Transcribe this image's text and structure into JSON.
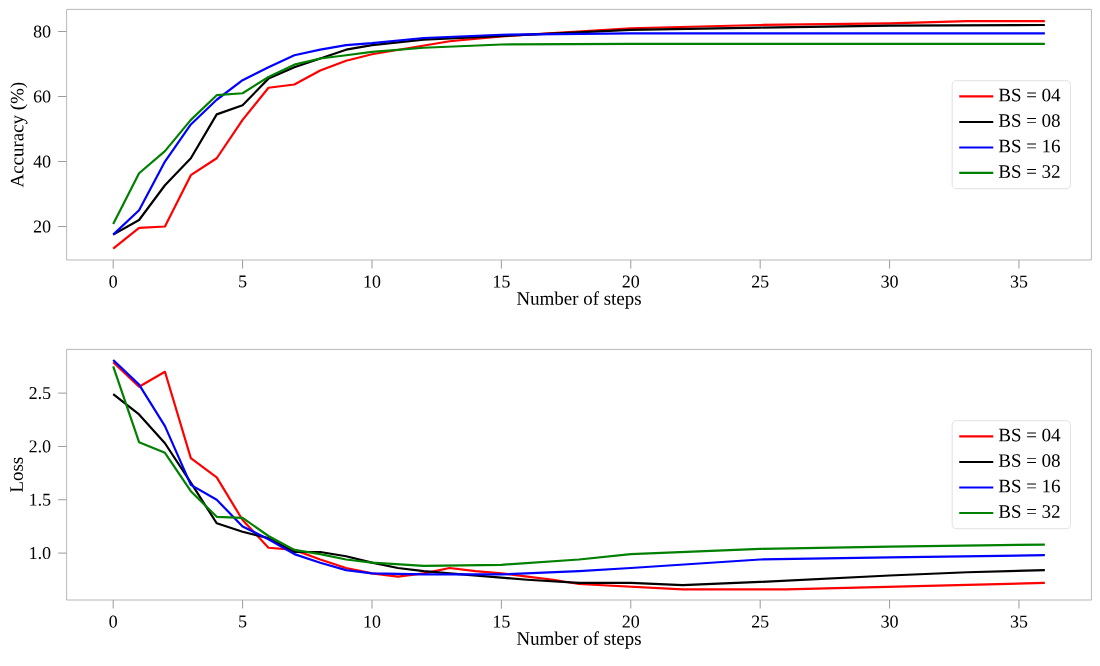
{
  "chart_data": [
    {
      "type": "line",
      "xlabel": "Number of steps",
      "ylabel": "Accuracy (%)",
      "xlim": [
        -1.8,
        37.8
      ],
      "ylim": [
        9.7,
        86.8
      ],
      "xticks": [
        0,
        5,
        10,
        15,
        20,
        25,
        30,
        35
      ],
      "yticks": [
        20,
        40,
        60,
        80
      ],
      "legend": "right",
      "grid": false,
      "marker": "none",
      "line_style": "solid",
      "series": [
        {
          "name": "BS = 04",
          "color": "#ff0000",
          "x": [
            0,
            1,
            2,
            3,
            4,
            5,
            6,
            7,
            8,
            9,
            10,
            13,
            15,
            20,
            25,
            30,
            33,
            36
          ],
          "values": [
            13.2,
            19.6,
            20,
            35.8,
            41,
            52.8,
            62.7,
            63.7,
            68,
            71,
            73,
            77,
            78.5,
            81,
            82,
            82.5,
            83.2,
            83.2
          ]
        },
        {
          "name": "BS = 08",
          "color": "#000000",
          "x": [
            0,
            1,
            2,
            3,
            4,
            5,
            6,
            7,
            8,
            9,
            10,
            12,
            20,
            25,
            30,
            36
          ],
          "values": [
            17.5,
            22,
            32.7,
            41,
            54.5,
            57.3,
            65.5,
            69,
            71.7,
            74.4,
            75.8,
            77.5,
            80.5,
            81.2,
            81.8,
            82
          ]
        },
        {
          "name": "BS = 16",
          "color": "#0000ff",
          "x": [
            0,
            1,
            2,
            3,
            4,
            5,
            6,
            7,
            8,
            9,
            10,
            12,
            15,
            20,
            36
          ],
          "values": [
            17.5,
            25,
            40,
            51.4,
            59,
            65,
            69,
            72.7,
            74.4,
            75.8,
            76.4,
            78,
            79,
            79.4,
            79.4
          ]
        },
        {
          "name": "BS = 32",
          "color": "#008000",
          "x": [
            0,
            1,
            2,
            3,
            4,
            5,
            6,
            7,
            8,
            9,
            10,
            12,
            15,
            20,
            36
          ],
          "values": [
            20.8,
            36.4,
            43.2,
            52.8,
            60.4,
            61,
            66,
            69.8,
            71.7,
            72.7,
            73.7,
            75,
            76,
            76.2,
            76.2
          ]
        }
      ]
    },
    {
      "type": "line",
      "xlabel": "Number of steps",
      "ylabel": "Loss",
      "xlim": [
        -1.8,
        37.8
      ],
      "ylim": [
        0.56,
        2.91
      ],
      "xticks": [
        0,
        5,
        10,
        15,
        20,
        25,
        30,
        35
      ],
      "yticks": [
        {
          "value": 1,
          "label": "1.0"
        },
        1.5,
        {
          "value": 2,
          "label": "2.0"
        },
        2.5
      ],
      "legend": "right",
      "grid": false,
      "marker": "none",
      "line_style": "solid",
      "series": [
        {
          "name": "BS = 04",
          "color": "#ff0000",
          "x": [
            0,
            1,
            2,
            3,
            4,
            5,
            6,
            7,
            8,
            9,
            10,
            11,
            12,
            13,
            14,
            15,
            16,
            17,
            18,
            22,
            26,
            36
          ],
          "values": [
            2.79,
            2.56,
            2.7,
            1.89,
            1.71,
            1.31,
            1.05,
            1.03,
            0.94,
            0.86,
            0.81,
            0.78,
            0.81,
            0.86,
            0.83,
            0.81,
            0.78,
            0.75,
            0.71,
            0.66,
            0.66,
            0.72
          ]
        },
        {
          "name": "BS = 08",
          "color": "#000000",
          "x": [
            0,
            1,
            2,
            3,
            4,
            5,
            6,
            7,
            8,
            9,
            10,
            11,
            12,
            13,
            15,
            16,
            18,
            20,
            22,
            25,
            30,
            33,
            36
          ],
          "values": [
            2.49,
            2.3,
            2.03,
            1.66,
            1.28,
            1.2,
            1.14,
            1.01,
            1.01,
            0.97,
            0.91,
            0.86,
            0.83,
            0.81,
            0.77,
            0.75,
            0.72,
            0.72,
            0.7,
            0.73,
            0.79,
            0.82,
            0.84
          ]
        },
        {
          "name": "BS = 16",
          "color": "#0000ff",
          "x": [
            0,
            1,
            2,
            3,
            4,
            5,
            6,
            7,
            8,
            9,
            10,
            12,
            15,
            18,
            20,
            25,
            30,
            36
          ],
          "values": [
            2.81,
            2.58,
            2.19,
            1.64,
            1.5,
            1.25,
            1.13,
            0.99,
            0.91,
            0.84,
            0.81,
            0.8,
            0.8,
            0.83,
            0.86,
            0.94,
            0.96,
            0.98
          ]
        },
        {
          "name": "BS = 32",
          "color": "#008000",
          "x": [
            0,
            1,
            2,
            3,
            4,
            5,
            6,
            7,
            8,
            9,
            10,
            12,
            15,
            18,
            20,
            25,
            30,
            36
          ],
          "values": [
            2.75,
            2.04,
            1.94,
            1.58,
            1.34,
            1.33,
            1.16,
            1.03,
            0.99,
            0.94,
            0.91,
            0.88,
            0.89,
            0.94,
            0.99,
            1.04,
            1.06,
            1.08
          ]
        }
      ]
    }
  ]
}
